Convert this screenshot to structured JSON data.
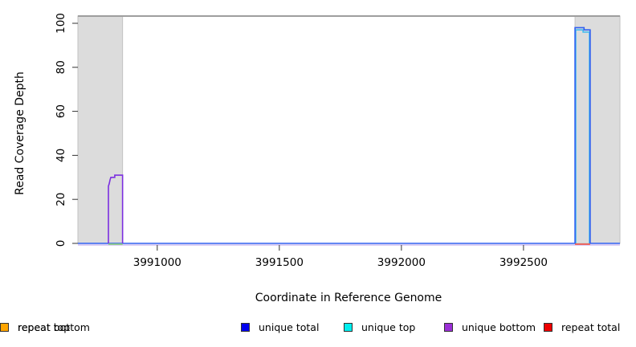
{
  "chart_data": {
    "type": "line",
    "title": "",
    "xlabel": "Coordinate in Reference Genome",
    "ylabel": "Read Coverage Depth",
    "xlim": [
      3990675,
      3992895
    ],
    "ylim": [
      0,
      100
    ],
    "xticks": [
      3991000,
      3991500,
      3992000,
      3992500
    ],
    "yticks": [
      0,
      20,
      40,
      60,
      80,
      100
    ],
    "grid": false,
    "legend_position": "bottom",
    "repeat_regions": {
      "fill": "#DCDCDC",
      "stroke": "#C2C2C2",
      "regions": [
        {
          "x1": 3990675,
          "x2": 3990858
        },
        {
          "x1": 3992711,
          "x2": 3992895
        }
      ]
    },
    "top_boundary_line": {
      "value": 103.3,
      "color": "#9E9E9E"
    },
    "baseline_underlay": {
      "color": "#CDBEF0"
    },
    "series": [
      {
        "name": "unique top",
        "color": "#44BBEE",
        "points": [
          [
            3992714,
            0
          ],
          [
            3992714,
            97
          ],
          [
            3992744,
            97
          ],
          [
            3992744,
            96
          ],
          [
            3992770,
            96
          ],
          [
            3992770,
            0
          ]
        ]
      },
      {
        "name": "unique total",
        "color": "#3060F0",
        "points": [
          [
            3990675,
            0
          ],
          [
            3992711,
            0
          ],
          [
            3992711,
            98
          ],
          [
            3992748,
            98
          ],
          [
            3992748,
            97
          ],
          [
            3992773,
            97
          ],
          [
            3992773,
            0
          ],
          [
            3992895,
            0
          ]
        ]
      },
      {
        "name": "unique bottom",
        "color": "#7B2FE0",
        "points": [
          [
            3990800,
            0
          ],
          [
            3990800,
            26
          ],
          [
            3990803,
            27
          ],
          [
            3990805,
            28
          ],
          [
            3990807,
            29
          ],
          [
            3990810,
            30
          ],
          [
            3990826,
            30
          ],
          [
            3990826,
            31
          ],
          [
            3990858,
            31
          ],
          [
            3990858,
            0
          ]
        ]
      }
    ],
    "baseline_segments": [
      {
        "name": "left-peak-base",
        "color": "#8CCD82",
        "x1": 3990800,
        "x2": 3990858
      },
      {
        "name": "right-peak-base",
        "color": "#F05A50",
        "x1": 3992711,
        "x2": 3992773
      }
    ]
  },
  "axes": {
    "xlabel": "Coordinate in Reference Genome",
    "ylabel": "Read Coverage Depth",
    "tick_color": "#333333",
    "label_color": "#000000"
  },
  "legend": {
    "items": [
      {
        "label": "unique total",
        "color": "#0000EE"
      },
      {
        "label": "unique top",
        "color": "#00EEEE"
      },
      {
        "label": "unique bottom",
        "color": "#9B2FD6"
      },
      {
        "label": "repeat total",
        "color": "#EE0000"
      },
      {
        "label": "repeat top",
        "color": "#FFFF00"
      },
      {
        "label": "repeat bottom",
        "color": "#FFA500"
      }
    ]
  }
}
